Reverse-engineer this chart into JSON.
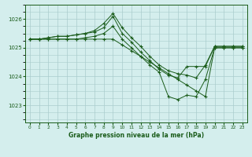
{
  "bg_color": "#d4eeed",
  "grid_color": "#aacccc",
  "line_color": "#1a5c1a",
  "marker_color": "#1a5c1a",
  "title": "Graphe pression niveau de la mer (hPa)",
  "xlim": [
    -0.5,
    23.5
  ],
  "ylim": [
    1022.4,
    1026.5
  ],
  "yticks": [
    1023,
    1024,
    1025,
    1026
  ],
  "xticks": [
    0,
    1,
    2,
    3,
    4,
    5,
    6,
    7,
    8,
    9,
    10,
    11,
    12,
    13,
    14,
    15,
    16,
    17,
    18,
    19,
    20,
    21,
    22,
    23
  ],
  "series": [
    [
      1025.3,
      1025.3,
      1025.3,
      1025.3,
      1025.3,
      1025.3,
      1025.3,
      1025.3,
      1025.3,
      1025.3,
      1025.1,
      1024.9,
      1024.7,
      1024.5,
      1024.3,
      1024.1,
      1023.9,
      1023.7,
      1023.5,
      1023.3,
      1025.0,
      1025.0,
      1025.0,
      1025.0
    ],
    [
      1025.3,
      1025.3,
      1025.3,
      1025.3,
      1025.3,
      1025.3,
      1025.35,
      1025.4,
      1025.5,
      1025.75,
      1025.3,
      1025.0,
      1024.7,
      1024.4,
      1024.15,
      1023.3,
      1023.2,
      1023.35,
      1023.3,
      1023.9,
      1025.0,
      1025.0,
      1025.0,
      1025.0
    ],
    [
      1025.3,
      1025.3,
      1025.35,
      1025.4,
      1025.4,
      1025.45,
      1025.5,
      1025.55,
      1025.7,
      1026.1,
      1025.5,
      1025.2,
      1024.85,
      1024.55,
      1024.25,
      1024.05,
      1023.95,
      1024.35,
      1024.35,
      1024.35,
      1025.05,
      1025.05,
      1025.05,
      1025.05
    ],
    [
      1025.3,
      1025.3,
      1025.35,
      1025.4,
      1025.4,
      1025.45,
      1025.5,
      1025.6,
      1025.85,
      1026.2,
      1025.7,
      1025.35,
      1025.05,
      1024.7,
      1024.4,
      1024.2,
      1024.1,
      1024.05,
      1023.95,
      1024.4,
      1025.05,
      1025.05,
      1025.05,
      1025.05
    ]
  ]
}
